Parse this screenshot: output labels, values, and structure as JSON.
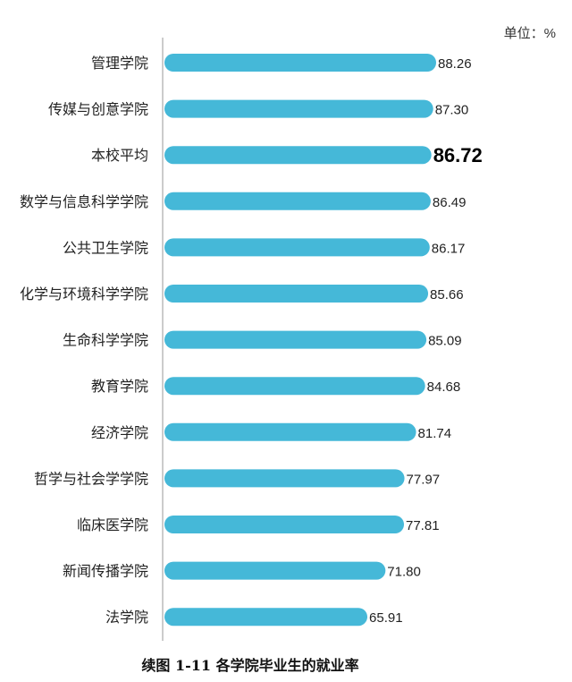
{
  "unit_label": "单位：%",
  "caption": "续图 1-11 各学院毕业生的就业率",
  "colors": {
    "bar": "#45b8d8",
    "axis": "#999999"
  },
  "chart_data": {
    "type": "bar",
    "orientation": "horizontal",
    "categories": [
      "管理学院",
      "传媒与创意学院",
      "本校平均",
      "数学与信息科学学院",
      "公共卫生学院",
      "化学与环境科学学院",
      "生命科学学院",
      "教育学院",
      "经济学院",
      "哲学与社会学学院",
      "临床医学院",
      "新闻传播学院",
      "法学院"
    ],
    "values": [
      88.26,
      87.3,
      86.72,
      86.49,
      86.17,
      85.66,
      85.09,
      84.68,
      81.74,
      77.97,
      77.81,
      71.8,
      65.91
    ],
    "value_labels": [
      "88.26",
      "87.30",
      "86.72",
      "86.49",
      "86.17",
      "85.66",
      "85.09",
      "84.68",
      "81.74",
      "77.97",
      "77.81",
      "71.80",
      "65.91"
    ],
    "highlight_category": "本校平均",
    "xlim": [
      0,
      88.26
    ],
    "grid": false,
    "legend": "none"
  }
}
